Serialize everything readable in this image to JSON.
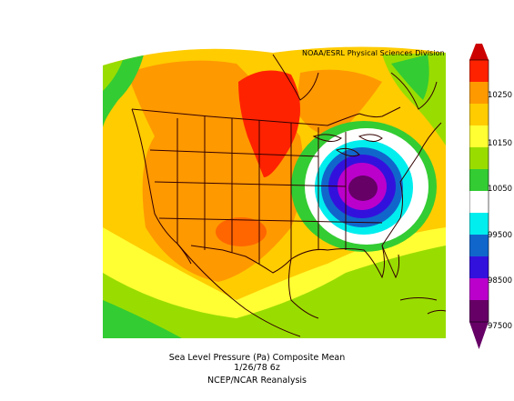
{
  "credit": "NOAA/ESRL Physical Sciences Division",
  "caption": {
    "line1": "Sea Level Pressure (Pa)   Composite Mean",
    "line2": "1/26/78 6z",
    "line3": "NCEP/NCAR Reanalysis"
  },
  "colorbar": {
    "labels": [
      "10250",
      "10150",
      "10050",
      "99500",
      "98500",
      "97500"
    ],
    "colors": [
      "#cc0000",
      "#ff2200",
      "#ff9900",
      "#ffcc00",
      "#ffff33",
      "#99dd00",
      "#33cc33",
      "#ffffff",
      "#00eeee",
      "#1166cc",
      "#3311dd",
      "#bb00cc",
      "#660066"
    ]
  },
  "map_colors": {
    "high_red": "#ff2200",
    "orange": "#ff9900",
    "dark_orange": "#ff6600",
    "yellow": "#ffcc00",
    "light_yellow": "#ffff33",
    "green": "#33cc33",
    "light_green": "#99dd00",
    "white": "#ffffff",
    "cyan": "#00eeee",
    "blue": "#1166cc",
    "indigo": "#3311dd",
    "purple": "#bb00cc",
    "dark_purple": "#660066"
  }
}
